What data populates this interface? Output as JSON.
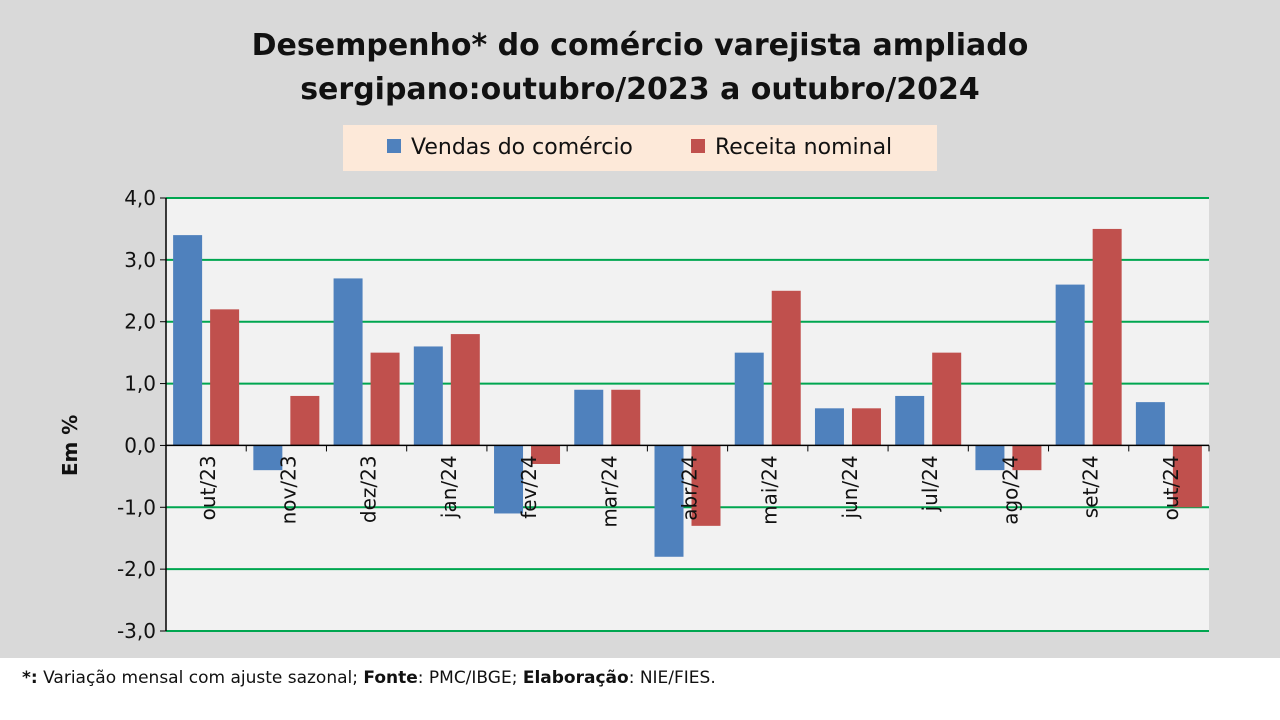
{
  "chart_data": {
    "type": "bar",
    "title": "Desempenho* do comércio varejista ampliado\nsergipano:outubro/2023 a outubro/2024",
    "ylabel": "Em %",
    "xlabel": "",
    "ylim": [
      -3.0,
      4.0
    ],
    "yticks": [
      4.0,
      3.0,
      2.0,
      1.0,
      0.0,
      -1.0,
      -2.0,
      -3.0
    ],
    "ytick_labels": [
      "4,0",
      "3,0",
      "2,0",
      "1,0",
      "0,0",
      "-1,0",
      "-2,0",
      "-3,0"
    ],
    "grid": true,
    "legend_position": "top-center",
    "categories": [
      "out/23",
      "nov/23",
      "dez/23",
      "jan/24",
      "fev/24",
      "mar/24",
      "abr/24",
      "mai/24",
      "jun/24",
      "jul/24",
      "ago/24",
      "set/24",
      "out/24"
    ],
    "series": [
      {
        "name": "Vendas do comércio",
        "color": "#4f81bd",
        "values": [
          3.4,
          -0.4,
          2.7,
          1.6,
          -1.1,
          0.9,
          -1.8,
          1.5,
          0.6,
          0.8,
          -0.4,
          2.6,
          0.7
        ]
      },
      {
        "name": "Receita nominal",
        "color": "#c0504d",
        "values": [
          2.2,
          0.8,
          1.5,
          1.8,
          -0.3,
          0.9,
          -1.3,
          2.5,
          0.6,
          1.5,
          -0.4,
          3.5,
          -1.0
        ]
      }
    ]
  },
  "footnote": {
    "marker": "*:",
    "text1": " Variação mensal com ajuste sazonal; ",
    "fonte_label": "Fonte",
    "text2": ": PMC/IBGE; ",
    "elab_label": "Elaboração",
    "text3": ": NIE/FIES."
  },
  "colors": {
    "gridline": "#00a650",
    "axis": "#000000",
    "frame": "#d9d9d9",
    "plot_background": "#f2f2f2",
    "legend_background": "#fde9d9"
  }
}
